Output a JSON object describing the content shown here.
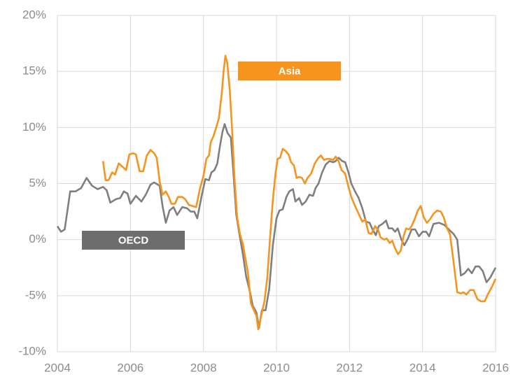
{
  "chart_data": {
    "type": "line",
    "xlim": [
      2004,
      2016
    ],
    "xticks": [
      2004,
      2006,
      2008,
      2010,
      2012,
      2014,
      2016
    ],
    "ylim": [
      -10,
      20
    ],
    "yticks": [
      {
        "value": -10,
        "label": "-10%"
      },
      {
        "value": -5,
        "label": "-5%"
      },
      {
        "value": 0,
        "label": "0%"
      },
      {
        "value": 5,
        "label": "5%"
      },
      {
        "value": 10,
        "label": "10%"
      },
      {
        "value": 15,
        "label": "15%"
      },
      {
        "value": 20,
        "label": "20%"
      }
    ],
    "grid": true,
    "series": [
      {
        "name": "OECD",
        "color": "#7f7f7f",
        "x": [
          2004.0,
          2004.1,
          2004.2,
          2004.35,
          2004.5,
          2004.65,
          2004.8,
          2004.95,
          2005.1,
          2005.25,
          2005.35,
          2005.45,
          2005.6,
          2005.72,
          2005.82,
          2005.92,
          2006.0,
          2006.15,
          2006.3,
          2006.42,
          2006.55,
          2006.65,
          2006.8,
          2006.88,
          2006.97,
          2007.07,
          2007.18,
          2007.28,
          2007.42,
          2007.55,
          2007.65,
          2007.75,
          2007.83,
          2007.95,
          2008.05,
          2008.15,
          2008.22,
          2008.3,
          2008.38,
          2008.45,
          2008.52,
          2008.58,
          2008.66,
          2008.75,
          2008.83,
          2008.9,
          2009.0,
          2009.08,
          2009.17,
          2009.27,
          2009.35,
          2009.45,
          2009.52,
          2009.6,
          2009.7,
          2009.8,
          2009.9,
          2010.0,
          2010.08,
          2010.17,
          2010.27,
          2010.35,
          2010.45,
          2010.52,
          2010.62,
          2010.7,
          2010.8,
          2010.9,
          2011.0,
          2011.07,
          2011.15,
          2011.25,
          2011.35,
          2011.45,
          2011.55,
          2011.62,
          2011.7,
          2011.8,
          2011.88,
          2011.97,
          2012.05,
          2012.15,
          2012.25,
          2012.35,
          2012.45,
          2012.55,
          2012.63,
          2012.72,
          2012.8,
          2012.9,
          2013.0,
          2013.07,
          2013.17,
          2013.25,
          2013.32,
          2013.42,
          2013.5,
          2013.6,
          2013.7,
          2013.8,
          2013.9,
          2014.0,
          2014.1,
          2014.18,
          2014.3,
          2014.45,
          2014.6,
          2014.72,
          2014.85,
          2014.95,
          2015.05,
          2015.15,
          2015.25,
          2015.35,
          2015.45,
          2015.55,
          2015.65,
          2015.75,
          2015.85,
          2016.0
        ],
        "values": [
          1.2,
          0.7,
          0.9,
          4.3,
          4.3,
          4.6,
          5.5,
          4.8,
          4.5,
          4.7,
          4.4,
          3.3,
          3.6,
          3.7,
          4.3,
          4.1,
          3.2,
          3.9,
          3.4,
          4.0,
          4.9,
          5.1,
          4.8,
          3.0,
          1.5,
          2.6,
          2.9,
          2.2,
          2.9,
          2.8,
          2.5,
          2.5,
          1.9,
          3.9,
          5.4,
          5.3,
          6.0,
          6.2,
          6.8,
          8.3,
          9.6,
          10.3,
          9.5,
          9.1,
          5.5,
          2.2,
          0.2,
          -1.3,
          -3.3,
          -4.6,
          -5.9,
          -6.5,
          -7.9,
          -6.3,
          -6.3,
          -4.4,
          -0.5,
          1.9,
          2.6,
          2.7,
          3.8,
          4.3,
          4.5,
          3.4,
          3.7,
          3.1,
          3.4,
          4.0,
          3.9,
          4.6,
          5.0,
          6.0,
          6.7,
          7.0,
          6.9,
          7.0,
          7.3,
          7.0,
          6.9,
          6.0,
          5.0,
          4.3,
          3.7,
          2.8,
          1.6,
          1.5,
          0.9,
          0.4,
          1.2,
          1.4,
          1.7,
          1.0,
          1.0,
          0.7,
          1.0,
          0.0,
          -0.5,
          0.1,
          0.9,
          0.9,
          0.3,
          0.7,
          0.7,
          0.3,
          1.4,
          1.5,
          1.3,
          0.9,
          0.5,
          0.0,
          -3.2,
          -3.0,
          -2.6,
          -3.0,
          -2.4,
          -2.4,
          -2.8,
          -3.8,
          -3.4,
          -2.5
        ]
      },
      {
        "name": "Asia",
        "color": "#f7941d",
        "x": [
          2005.25,
          2005.32,
          2005.4,
          2005.5,
          2005.58,
          2005.68,
          2005.78,
          2005.88,
          2005.97,
          2006.07,
          2006.15,
          2006.25,
          2006.35,
          2006.45,
          2006.55,
          2006.65,
          2006.72,
          2006.8,
          2006.88,
          2006.97,
          2007.05,
          2007.12,
          2007.22,
          2007.3,
          2007.42,
          2007.5,
          2007.6,
          2007.7,
          2007.8,
          2007.9,
          2008.0,
          2008.08,
          2008.15,
          2008.2,
          2008.27,
          2008.35,
          2008.42,
          2008.5,
          2008.55,
          2008.6,
          2008.65,
          2008.72,
          2008.78,
          2008.85,
          2008.92,
          2009.0,
          2009.08,
          2009.15,
          2009.22,
          2009.3,
          2009.38,
          2009.45,
          2009.5,
          2009.58,
          2009.67,
          2009.75,
          2009.82,
          2009.9,
          2009.97,
          2010.03,
          2010.1,
          2010.17,
          2010.25,
          2010.33,
          2010.4,
          2010.48,
          2010.55,
          2010.62,
          2010.7,
          2010.78,
          2010.85,
          2010.95,
          2011.05,
          2011.15,
          2011.22,
          2011.3,
          2011.38,
          2011.45,
          2011.55,
          2011.62,
          2011.7,
          2011.78,
          2011.88,
          2011.97,
          2012.05,
          2012.15,
          2012.25,
          2012.35,
          2012.43,
          2012.52,
          2012.6,
          2012.7,
          2012.78,
          2012.85,
          2012.95,
          2013.02,
          2013.1,
          2013.17,
          2013.25,
          2013.33,
          2013.4,
          2013.48,
          2013.55,
          2013.63,
          2013.7,
          2013.78,
          2013.87,
          2013.95,
          2014.03,
          2014.12,
          2014.2,
          2014.3,
          2014.4,
          2014.5,
          2014.58,
          2014.67,
          2014.75,
          2014.85,
          2014.95,
          2015.05,
          2015.12,
          2015.2,
          2015.3,
          2015.4,
          2015.5,
          2015.6,
          2015.7,
          2015.8,
          2015.9,
          2016.0
        ],
        "values": [
          7.0,
          5.3,
          5.3,
          6.0,
          5.8,
          6.8,
          6.5,
          6.2,
          7.6,
          7.7,
          7.6,
          6.1,
          6.1,
          7.5,
          8.0,
          7.7,
          7.3,
          5.2,
          4.0,
          4.3,
          3.8,
          3.2,
          3.2,
          3.8,
          3.8,
          3.6,
          3.1,
          3.0,
          2.9,
          4.5,
          5.7,
          7.2,
          7.5,
          8.7,
          9.2,
          10.0,
          10.8,
          13.0,
          15.0,
          16.4,
          15.8,
          13.4,
          10.0,
          5.5,
          2.0,
          0.5,
          -0.4,
          -1.7,
          -3.0,
          -5.7,
          -6.3,
          -6.8,
          -8.0,
          -6.8,
          -5.5,
          -3.3,
          0.0,
          3.5,
          5.8,
          7.2,
          7.3,
          8.1,
          7.9,
          7.6,
          6.9,
          6.6,
          5.5,
          5.6,
          5.5,
          5.0,
          5.5,
          5.9,
          6.8,
          7.3,
          7.5,
          7.1,
          7.2,
          7.2,
          7.1,
          7.4,
          7.0,
          6.2,
          5.9,
          4.7,
          3.8,
          3.0,
          2.3,
          1.6,
          1.8,
          0.6,
          0.5,
          1.2,
          0.9,
          0.2,
          0.0,
          0.1,
          -0.3,
          -0.1,
          -0.8,
          -1.3,
          -1.0,
          0.3,
          1.0,
          0.9,
          1.2,
          1.8,
          2.6,
          3.0,
          2.0,
          1.5,
          1.8,
          2.3,
          2.6,
          2.5,
          2.0,
          1.0,
          0.5,
          -2.0,
          -4.7,
          -4.8,
          -4.7,
          -4.9,
          -4.5,
          -4.5,
          -5.3,
          -5.5,
          -5.5,
          -4.8,
          -4.2,
          -3.5
        ]
      }
    ]
  }
}
